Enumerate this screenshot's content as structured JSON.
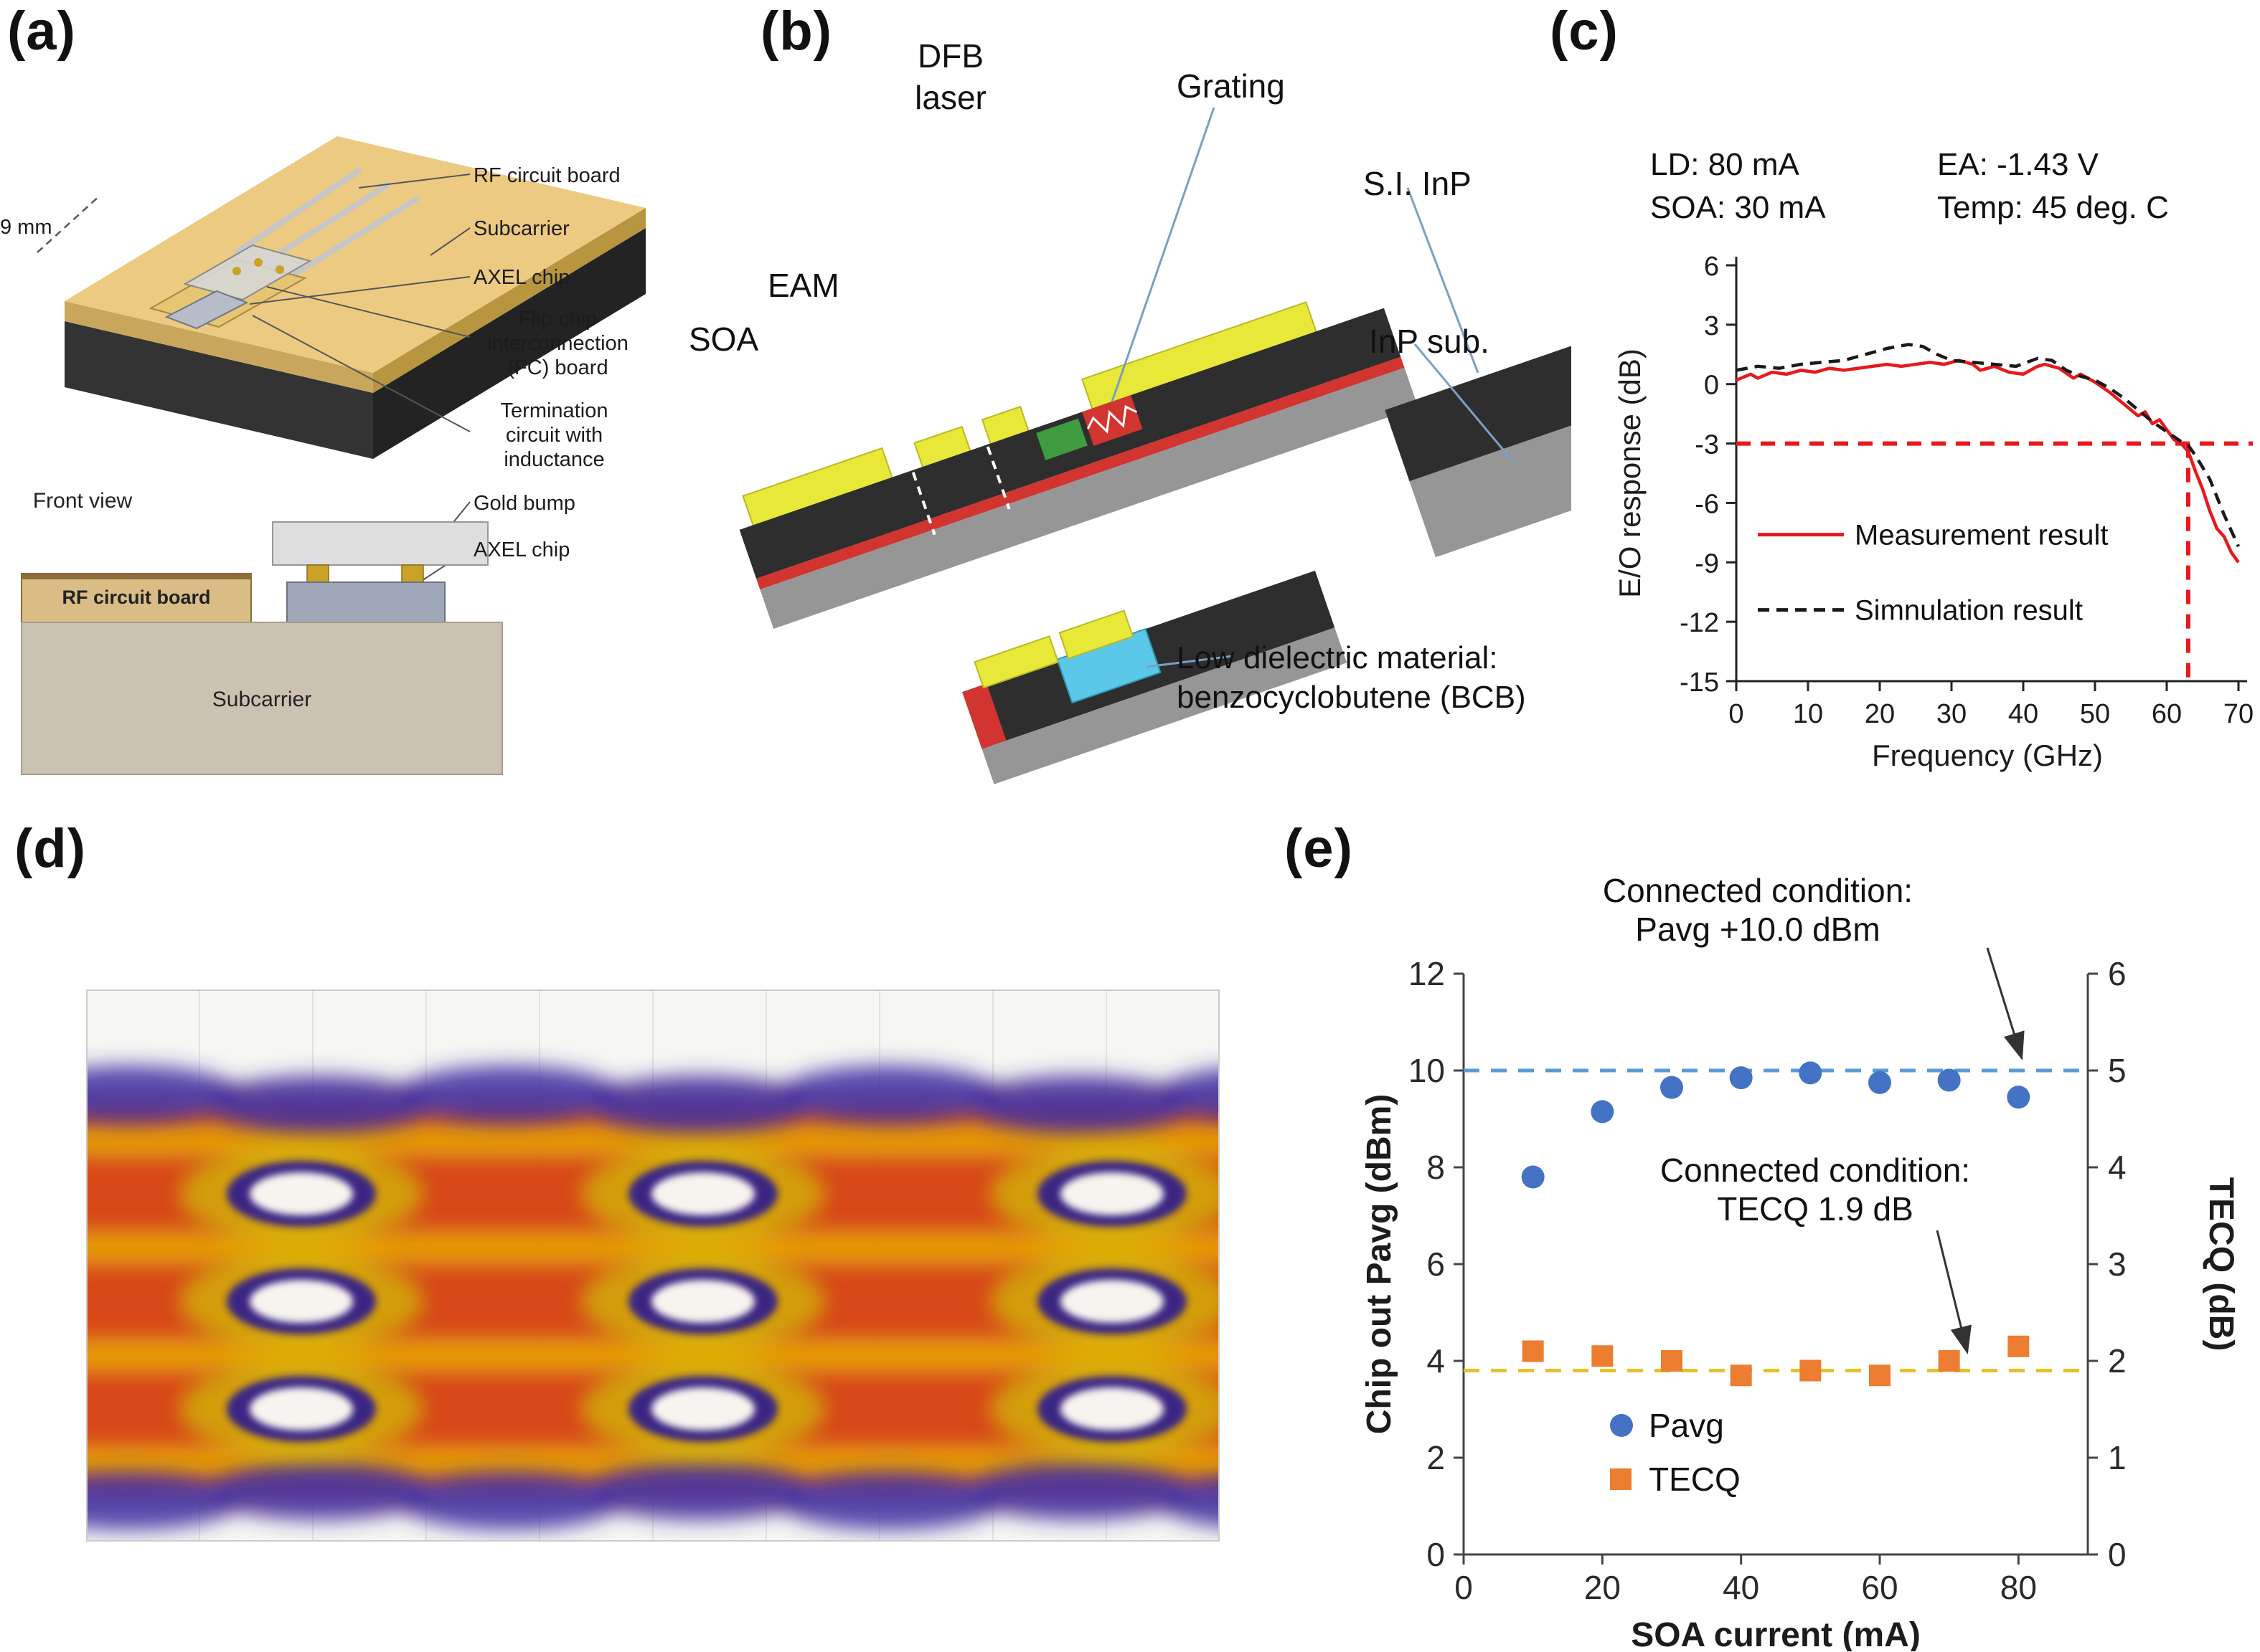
{
  "panels": {
    "a": {
      "label": "(a)",
      "dim": "9 mm",
      "front_view": "Front view",
      "callouts": [
        "RF circuit board",
        "Subcarrier",
        "AXEL chip",
        "Flip-chip interconnection (FC) board",
        "Termination circuit with inductance",
        "Gold bump",
        "AXEL chip"
      ],
      "front_rf": "RF circuit board",
      "front_sub": "Subcarrier"
    },
    "b": {
      "label": "(b)",
      "labels": {
        "dfb": "DFB laser",
        "grating": "Grating",
        "eam": "EAM",
        "soa": "SOA",
        "si_inp": "S.I. InP",
        "inp_sub": "InP sub.",
        "bcb": "Low dielectric material: benzocyclobutene (BCB)"
      }
    },
    "c": {
      "label": "(c)"
    },
    "d": {
      "label": "(d)"
    },
    "e": {
      "label": "(e)"
    }
  },
  "chart_data": [
    {
      "id": "eo-response",
      "type": "line",
      "header": {
        "ld": "LD: 80 mA",
        "soa": "SOA: 30 mA",
        "ea": "EA: -1.43 V",
        "temp": "Temp: 45 deg. C"
      },
      "xlabel": "Frequency (GHz)",
      "ylabel": "E/O response (dB)",
      "xlim": [
        0,
        70
      ],
      "ylim": [
        -15,
        6
      ],
      "xticks": [
        0,
        10,
        20,
        30,
        40,
        50,
        60,
        70
      ],
      "yticks": [
        6,
        3,
        0,
        -3,
        -6,
        -9,
        -12,
        -15
      ],
      "ref_lines": {
        "horizontal_y": -3,
        "vertical_x": 63,
        "color": "#e8191c"
      },
      "series": [
        {
          "name": "Measurement result",
          "style": "solid",
          "color": "#e8191c",
          "points": [
            [
              0,
              0.2
            ],
            [
              2,
              0.5
            ],
            [
              3,
              0.3
            ],
            [
              5,
              0.6
            ],
            [
              7,
              0.5
            ],
            [
              9,
              0.7
            ],
            [
              11,
              0.6
            ],
            [
              13,
              0.8
            ],
            [
              15,
              0.7
            ],
            [
              17,
              0.8
            ],
            [
              19,
              0.9
            ],
            [
              21,
              1.0
            ],
            [
              23,
              0.9
            ],
            [
              25,
              1.0
            ],
            [
              27,
              1.1
            ],
            [
              29,
              1.0
            ],
            [
              31,
              1.2
            ],
            [
              33,
              1.0
            ],
            [
              34,
              0.7
            ],
            [
              36,
              0.9
            ],
            [
              38,
              0.6
            ],
            [
              40,
              0.5
            ],
            [
              42,
              0.9
            ],
            [
              43,
              1.0
            ],
            [
              45,
              0.8
            ],
            [
              47,
              0.3
            ],
            [
              48,
              0.5
            ],
            [
              50,
              0.1
            ],
            [
              52,
              -0.4
            ],
            [
              54,
              -1.0
            ],
            [
              55,
              -1.3
            ],
            [
              56,
              -1.6
            ],
            [
              57,
              -1.4
            ],
            [
              58,
              -2.0
            ],
            [
              59,
              -1.8
            ],
            [
              60,
              -2.3
            ],
            [
              61,
              -2.8
            ],
            [
              62,
              -3.0
            ],
            [
              63,
              -3.4
            ],
            [
              64,
              -4.4
            ],
            [
              65,
              -5.3
            ],
            [
              66,
              -6.4
            ],
            [
              67,
              -7.3
            ],
            [
              68,
              -7.7
            ],
            [
              69,
              -8.5
            ],
            [
              70,
              -9.0
            ]
          ]
        },
        {
          "name": "Simnulation result",
          "style": "dashed",
          "color": "#1a1a1a",
          "points": [
            [
              0,
              0.7
            ],
            [
              3,
              0.9
            ],
            [
              6,
              0.8
            ],
            [
              9,
              1.0
            ],
            [
              12,
              1.1
            ],
            [
              15,
              1.2
            ],
            [
              18,
              1.5
            ],
            [
              21,
              1.8
            ],
            [
              24,
              2.0
            ],
            [
              26,
              1.9
            ],
            [
              28,
              1.5
            ],
            [
              30,
              1.2
            ],
            [
              33,
              1.1
            ],
            [
              36,
              1.0
            ],
            [
              39,
              0.9
            ],
            [
              42,
              1.3
            ],
            [
              44,
              1.2
            ],
            [
              46,
              0.7
            ],
            [
              48,
              0.4
            ],
            [
              50,
              0.2
            ],
            [
              52,
              -0.2
            ],
            [
              54,
              -0.7
            ],
            [
              56,
              -1.3
            ],
            [
              58,
              -1.9
            ],
            [
              60,
              -2.4
            ],
            [
              62,
              -2.9
            ],
            [
              63,
              -3.1
            ],
            [
              64,
              -3.6
            ],
            [
              66,
              -4.8
            ],
            [
              68,
              -6.6
            ],
            [
              69,
              -7.4
            ],
            [
              70,
              -8.2
            ]
          ]
        }
      ]
    },
    {
      "id": "pavg-tecq",
      "type": "scatter",
      "xlabel": "SOA current (mA)",
      "ylabel_left": "Chip out Pavg (dBm)",
      "ylabel_right": "TECQ (dB)",
      "xlim": [
        0,
        90
      ],
      "ylim_left": [
        0,
        12
      ],
      "ylim_right": [
        0,
        6
      ],
      "xticks": [
        0,
        20,
        40,
        60,
        80
      ],
      "yticks_left": [
        0,
        2,
        4,
        6,
        8,
        10,
        12
      ],
      "yticks_right": [
        0,
        1,
        2,
        3,
        4,
        5,
        6
      ],
      "x": [
        10,
        20,
        30,
        40,
        50,
        60,
        70,
        80
      ],
      "series": [
        {
          "name": "Pavg",
          "axis": "left",
          "marker": "circle",
          "color": "#4472c4",
          "values": [
            7.8,
            9.15,
            9.65,
            9.85,
            9.95,
            9.75,
            9.8,
            9.45
          ]
        },
        {
          "name": "TECQ",
          "axis": "right",
          "marker": "square",
          "color": "#ed7d31",
          "values": [
            2.1,
            2.05,
            2.0,
            1.85,
            1.9,
            1.85,
            2.0,
            2.15
          ]
        }
      ],
      "ref_lines": [
        {
          "axis": "left",
          "y": 10.0,
          "color": "#5b9bd5",
          "annotation": [
            "Connected condition:",
            "Pavg +10.0 dBm"
          ]
        },
        {
          "axis": "right",
          "y": 1.9,
          "color": "#e6c229",
          "annotation": [
            "Connected condition:",
            "TECQ 1.9 dB"
          ]
        }
      ]
    }
  ]
}
